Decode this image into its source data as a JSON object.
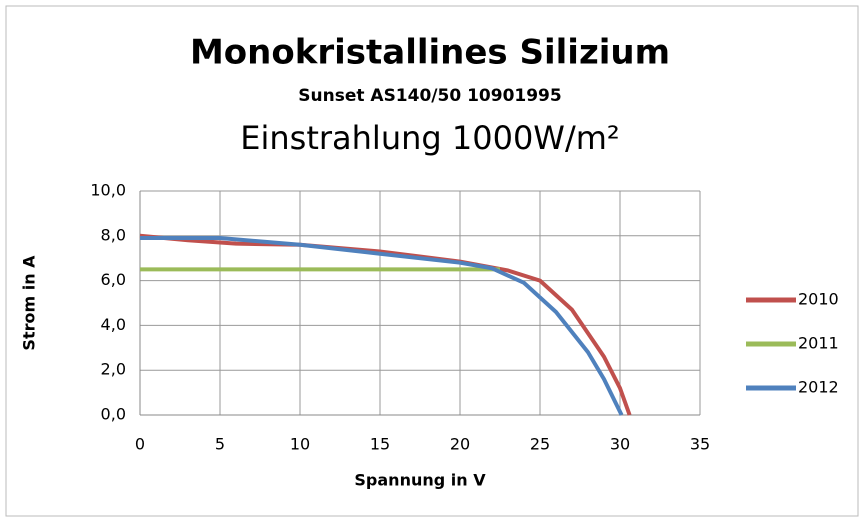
{
  "chart_data": {
    "type": "line",
    "title": "Monokristallines Silizium",
    "subtitle": "Sunset AS140/50 10901995",
    "subtitle2": "Einstrahlung 1000W/m²",
    "xlabel": "Spannung in V",
    "ylabel": "Strom in A",
    "xlim": [
      0,
      35
    ],
    "xticks": [
      0,
      5,
      10,
      15,
      20,
      25,
      30,
      35
    ],
    "ylim": [
      0,
      10
    ],
    "yticks": [
      {
        "value": 0,
        "label": "0,0"
      },
      {
        "value": 2,
        "label": "2,0"
      },
      {
        "value": 4,
        "label": "4,0"
      },
      {
        "value": 6,
        "label": "6,0"
      },
      {
        "value": 8,
        "label": "8,0"
      },
      {
        "value": 10,
        "label": "10,0"
      }
    ],
    "grid": true,
    "legend": "right",
    "series": [
      {
        "name": "2010",
        "color": "#c0504d",
        "x": [
          0,
          3,
          6,
          10,
          15,
          20,
          23,
          25,
          27,
          29,
          30,
          30.6
        ],
        "values": [
          8.0,
          7.8,
          7.65,
          7.6,
          7.3,
          6.85,
          6.45,
          6.0,
          4.7,
          2.6,
          1.2,
          0
        ]
      },
      {
        "name": "2011",
        "color": "#9bbb59",
        "x": [
          0,
          3,
          6,
          10.5,
          16.5,
          22.5
        ],
        "values": [
          6.5,
          6.5,
          6.5,
          6.5,
          6.5,
          6.5
        ]
      },
      {
        "name": "2012",
        "color": "#4f81bd",
        "x": [
          0,
          5,
          10,
          15,
          20,
          22,
          24,
          26,
          28,
          29,
          30.1
        ],
        "values": [
          7.9,
          7.9,
          7.6,
          7.2,
          6.8,
          6.55,
          5.9,
          4.6,
          2.8,
          1.6,
          0
        ]
      }
    ]
  }
}
